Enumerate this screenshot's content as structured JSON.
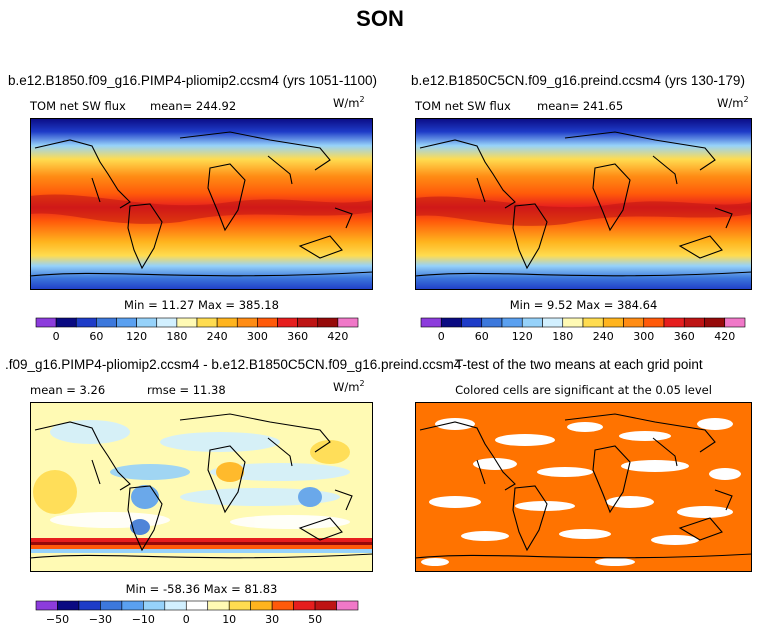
{
  "figure_title": "SON",
  "panels": {
    "top_left": {
      "case_title": "b.e12.B1850.f09_g16.PIMP4-pliomip2.ccsm4 (yrs 1051-1100)",
      "variable": "TOM net SW flux",
      "mean_text": "mean= 244.92",
      "units": "W/m",
      "units_exp": "2",
      "minmax_text": "Min =  11.27 Max = 385.18"
    },
    "top_right": {
      "case_title": "b.e12.B1850C5CN.f09_g16.preind.ccsm4 (yrs 130-179)",
      "variable": "TOM net SW flux",
      "mean_text": "mean= 241.65",
      "units": "W/m",
      "units_exp": "2",
      "minmax_text": "Min =   9.52 Max = 384.64"
    },
    "bottom_left": {
      "case_title": ".f09_g16.PIMP4-pliomip2.ccsm4 - b.e12.B1850C5CN.f09_g16.preind.ccsm4",
      "mean_text": "mean =    3.26",
      "rmse_text": "rmse =   11.38",
      "units": "W/m",
      "units_exp": "2",
      "minmax_text": "Min = -58.36 Max =  81.83"
    },
    "bottom_right": {
      "case_title": "T-test of the two means at each grid point",
      "subtitle": "Colored cells are significant at the 0.05 level"
    }
  },
  "chart_data": [
    {
      "type": "heatmap",
      "title": "b.e12.B1850.f09_g16.PIMP4-pliomip2.ccsm4 (yrs 1051-1100)",
      "variable": "TOM net SW flux",
      "units": "W/m2",
      "mean": 244.92,
      "min": 11.27,
      "max": 385.18,
      "colorbar_ticks": [
        0,
        60,
        120,
        180,
        240,
        300,
        360,
        420
      ],
      "colorbar_levels": [
        -30,
        0,
        30,
        60,
        90,
        120,
        150,
        180,
        210,
        240,
        270,
        300,
        330,
        360,
        390,
        420,
        450
      ],
      "colorbar_colors": [
        "#8c3cdc",
        "#0a0a82",
        "#1e3cc8",
        "#3c78dc",
        "#5aa0f0",
        "#96d2fa",
        "#d2f0ff",
        "#fffab4",
        "#ffdc50",
        "#ffb41e",
        "#ff8c14",
        "#ff5a0a",
        "#e61e1e",
        "#be1414",
        "#960a0a",
        "#f078c8"
      ]
    },
    {
      "type": "heatmap",
      "title": "b.e12.B1850C5CN.f09_g16.preind.ccsm4 (yrs 130-179)",
      "variable": "TOM net SW flux",
      "units": "W/m2",
      "mean": 241.65,
      "min": 9.52,
      "max": 384.64,
      "colorbar_ticks": [
        0,
        60,
        120,
        180,
        240,
        300,
        360,
        420
      ],
      "colorbar_levels": [
        -30,
        0,
        30,
        60,
        90,
        120,
        150,
        180,
        210,
        240,
        270,
        300,
        330,
        360,
        390,
        420,
        450
      ],
      "colorbar_colors": [
        "#8c3cdc",
        "#0a0a82",
        "#1e3cc8",
        "#3c78dc",
        "#5aa0f0",
        "#96d2fa",
        "#d2f0ff",
        "#fffab4",
        "#ffdc50",
        "#ffb41e",
        "#ff8c14",
        "#ff5a0a",
        "#e61e1e",
        "#be1414",
        "#960a0a",
        "#f078c8"
      ]
    },
    {
      "type": "heatmap",
      "title": ".f09_g16.PIMP4-pliomip2.ccsm4 - b.e12.B1850C5CN.f09_g16.preind.ccsm4",
      "units": "W/m2",
      "mean": 3.26,
      "rmse": 11.38,
      "min": -58.36,
      "max": 81.83,
      "colorbar_ticks": [
        -50,
        -30,
        -10,
        0,
        10,
        30,
        50
      ],
      "colorbar_tick_positions": [
        1,
        3,
        5,
        7,
        9,
        11,
        13
      ],
      "colorbar_colors": [
        "#8c3cdc",
        "#0a0a82",
        "#1e3cc8",
        "#3c78dc",
        "#5aa0f0",
        "#96d2fa",
        "#d2f0ff",
        "#ffffff",
        "#fffab4",
        "#ffdc50",
        "#ffb41e",
        "#ff5a0a",
        "#e61e1e",
        "#be1414",
        "#f078c8"
      ]
    },
    {
      "type": "heatmap",
      "title": "T-test of the two means at each grid point",
      "subtitle": "Colored cells are significant at the 0.05 level",
      "significant_color": "#ff7300",
      "not_significant_color": "#ffffff"
    }
  ]
}
